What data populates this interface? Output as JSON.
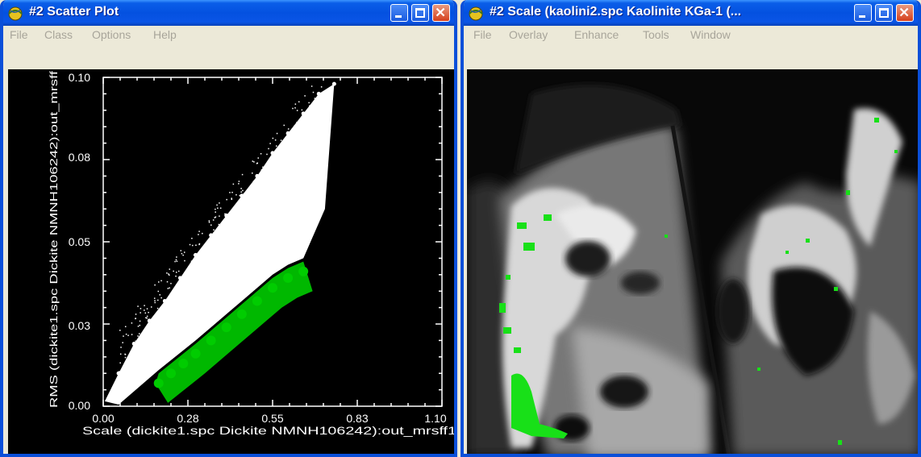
{
  "left_window": {
    "title": "#2 Scatter Plot",
    "menu": [
      "File",
      "Class",
      "Options",
      "Help"
    ],
    "colors": {
      "title_bar": "#0451e0",
      "frame": "#0a4fd9",
      "menu_text": "#a8a59a"
    }
  },
  "right_window": {
    "title": "#2 Scale (kaolini2.spc Kaolinite KGa-1 (...",
    "menu": [
      "File",
      "Overlay",
      "Enhance",
      "Tools",
      "Window"
    ]
  },
  "chart_data": {
    "type": "scatter",
    "xlabel": "Scale (dickite1.spc Dickite NMNH106242):out_mrsff1",
    "ylabel": "RMS (dickite1.spc Dickite NMNH106242):out_mrsff",
    "x_ticks": [
      "0.00",
      "0.28",
      "0.55",
      "0.83",
      "1.10"
    ],
    "y_ticks": [
      "0.00",
      "0.03",
      "0.05",
      "0.08",
      "0.10"
    ],
    "xlim": [
      0,
      1.1
    ],
    "ylim": [
      0,
      0.1
    ],
    "grid": false,
    "colors": {
      "background": "#000000",
      "points": "#ffffff",
      "class_region": "#00cc00"
    },
    "series": [
      {
        "color": "#ffffff",
        "x": [
          0.05,
          0.1,
          0.15,
          0.2,
          0.25,
          0.3,
          0.35,
          0.4,
          0.45,
          0.5,
          0.55,
          0.6,
          0.65,
          0.7,
          0.75
        ],
        "y": [
          0.01,
          0.019,
          0.026,
          0.032,
          0.039,
          0.046,
          0.052,
          0.058,
          0.064,
          0.07,
          0.077,
          0.083,
          0.089,
          0.095,
          0.098
        ]
      },
      {
        "color": "#00cc00",
        "x": [
          0.18,
          0.22,
          0.26,
          0.3,
          0.35,
          0.4,
          0.45,
          0.5,
          0.55,
          0.6,
          0.65
        ],
        "y": [
          0.007,
          0.01,
          0.013,
          0.016,
          0.02,
          0.024,
          0.028,
          0.032,
          0.036,
          0.039,
          0.041
        ]
      }
    ]
  }
}
